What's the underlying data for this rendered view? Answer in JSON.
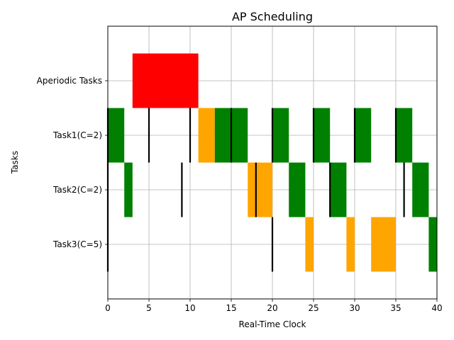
{
  "chart_data": {
    "type": "gantt",
    "title": "AP Scheduling",
    "xlabel": "Real-Time Clock",
    "ylabel": "Tasks",
    "xlim": [
      0,
      40
    ],
    "ylim": [
      0,
      5
    ],
    "xticks": [
      0,
      5,
      10,
      15,
      20,
      25,
      30,
      35,
      40
    ],
    "grid": true,
    "rows": [
      {
        "label": "Task3(C=5)",
        "y": 1
      },
      {
        "label": "Task2(C=2)",
        "y": 2
      },
      {
        "label": "Task1(C=2)",
        "y": 3
      },
      {
        "label": "Aperiodic Tasks",
        "y": 4
      }
    ],
    "colors": {
      "periodic": "#008000",
      "delayed": "#ffa500",
      "aperiodic": "#ff0000",
      "release": "#000000"
    },
    "bars": [
      {
        "row": "Aperiodic Tasks",
        "start": 3,
        "end": 11,
        "kind": "aperiodic"
      },
      {
        "row": "Task1(C=2)",
        "start": 0,
        "end": 2,
        "kind": "periodic"
      },
      {
        "row": "Task1(C=2)",
        "start": 11,
        "end": 13,
        "kind": "delayed"
      },
      {
        "row": "Task1(C=2)",
        "start": 13,
        "end": 15,
        "kind": "periodic"
      },
      {
        "row": "Task1(C=2)",
        "start": 15,
        "end": 17,
        "kind": "periodic"
      },
      {
        "row": "Task1(C=2)",
        "start": 20,
        "end": 22,
        "kind": "periodic"
      },
      {
        "row": "Task1(C=2)",
        "start": 25,
        "end": 27,
        "kind": "periodic"
      },
      {
        "row": "Task1(C=2)",
        "start": 30,
        "end": 32,
        "kind": "periodic"
      },
      {
        "row": "Task1(C=2)",
        "start": 35,
        "end": 37,
        "kind": "periodic"
      },
      {
        "row": "Task2(C=2)",
        "start": 2,
        "end": 3,
        "kind": "periodic"
      },
      {
        "row": "Task2(C=2)",
        "start": 17,
        "end": 18,
        "kind": "delayed"
      },
      {
        "row": "Task2(C=2)",
        "start": 18,
        "end": 20,
        "kind": "delayed"
      },
      {
        "row": "Task2(C=2)",
        "start": 22,
        "end": 24,
        "kind": "periodic"
      },
      {
        "row": "Task2(C=2)",
        "start": 27,
        "end": 29,
        "kind": "periodic"
      },
      {
        "row": "Task2(C=2)",
        "start": 37,
        "end": 39,
        "kind": "periodic"
      },
      {
        "row": "Task3(C=5)",
        "start": 24,
        "end": 25,
        "kind": "delayed"
      },
      {
        "row": "Task3(C=5)",
        "start": 29,
        "end": 30,
        "kind": "delayed"
      },
      {
        "row": "Task3(C=5)",
        "start": 32,
        "end": 35,
        "kind": "delayed"
      },
      {
        "row": "Task3(C=5)",
        "start": 39,
        "end": 40,
        "kind": "periodic"
      }
    ],
    "releases": [
      {
        "row": "Task1(C=2)",
        "t": 0
      },
      {
        "row": "Task1(C=2)",
        "t": 5
      },
      {
        "row": "Task1(C=2)",
        "t": 10
      },
      {
        "row": "Task1(C=2)",
        "t": 15
      },
      {
        "row": "Task1(C=2)",
        "t": 20
      },
      {
        "row": "Task1(C=2)",
        "t": 25
      },
      {
        "row": "Task1(C=2)",
        "t": 30
      },
      {
        "row": "Task1(C=2)",
        "t": 35
      },
      {
        "row": "Task2(C=2)",
        "t": 0
      },
      {
        "row": "Task2(C=2)",
        "t": 9
      },
      {
        "row": "Task2(C=2)",
        "t": 18
      },
      {
        "row": "Task2(C=2)",
        "t": 27
      },
      {
        "row": "Task2(C=2)",
        "t": 36
      },
      {
        "row": "Task3(C=5)",
        "t": 0
      },
      {
        "row": "Task3(C=5)",
        "t": 20
      }
    ]
  }
}
